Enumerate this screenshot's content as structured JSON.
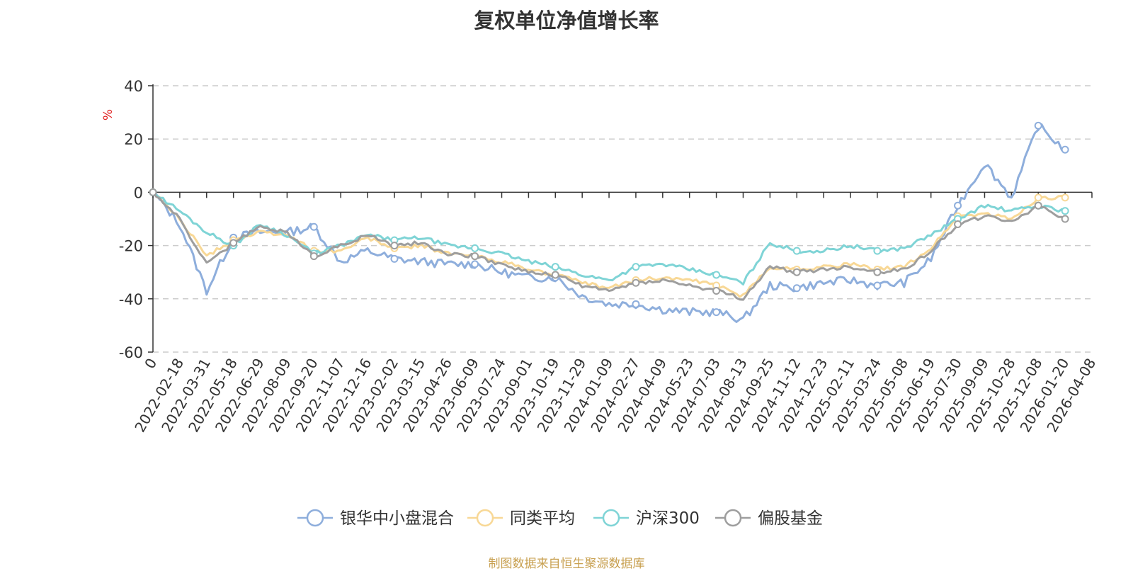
{
  "chart_data": {
    "type": "line",
    "title": "复权单位净值增长率",
    "ylabel": "%",
    "xlabel": "",
    "ylim": [
      -60,
      40
    ],
    "yticks": [
      "40",
      "20",
      "0",
      "-20",
      "-40",
      "-60"
    ],
    "x_origin_label": "0",
    "categories": [
      "2022-02-18",
      "2022-03-31",
      "2022-05-18",
      "2022-06-29",
      "2022-08-09",
      "2022-09-20",
      "2022-11-07",
      "2022-12-16",
      "2023-02-02",
      "2023-03-15",
      "2023-04-26",
      "2023-06-09",
      "2023-07-24",
      "2023-09-01",
      "2023-10-19",
      "2023-11-29",
      "2024-01-09",
      "2024-02-27",
      "2024-04-09",
      "2024-05-23",
      "2024-07-03",
      "2024-08-13",
      "2024-09-25",
      "2024-11-12",
      "2024-12-23",
      "2025-02-11",
      "2025-03-24",
      "2025-05-08",
      "2025-06-19",
      "2025-07-30",
      "2025-09-09",
      "2025-10-28",
      "2025-12-08",
      "2026-01-20",
      "2026-04-08"
    ],
    "series": [
      {
        "name": "银华中小盘混合",
        "color": "#8eaedc",
        "values": [
          0,
          -12,
          -37,
          -17,
          -15,
          -15,
          -13,
          -26,
          -22,
          -25,
          -26,
          -27,
          -27,
          -30,
          -32,
          -32,
          -39,
          -42,
          -42,
          -44,
          -45,
          -45,
          -48,
          -35,
          -36,
          -34,
          -33,
          -35,
          -34,
          -25,
          -5,
          11,
          -2,
          25,
          16
        ]
      },
      {
        "name": "同类平均",
        "color": "#f8d896",
        "values": [
          0,
          -10,
          -24,
          -18,
          -15,
          -16,
          -22,
          -22,
          -17,
          -21,
          -20,
          -23,
          -24,
          -26,
          -29,
          -31,
          -34,
          -36,
          -33,
          -32,
          -33,
          -35,
          -39,
          -28,
          -29,
          -28,
          -27,
          -29,
          -28,
          -21,
          -9,
          -8,
          -10,
          -2,
          -2
        ]
      },
      {
        "name": "沪深300",
        "color": "#7fd4d6",
        "values": [
          0,
          -7,
          -15,
          -20,
          -12,
          -16,
          -23,
          -20,
          -16,
          -18,
          -17,
          -20,
          -21,
          -23,
          -26,
          -28,
          -31,
          -33,
          -28,
          -27,
          -29,
          -31,
          -34,
          -19,
          -22,
          -22,
          -20,
          -22,
          -21,
          -16,
          -10,
          -5,
          -7,
          -5,
          -7
        ]
      },
      {
        "name": "偏股基金",
        "color": "#9e9e9e",
        "values": [
          0,
          -10,
          -27,
          -19,
          -13,
          -15,
          -24,
          -20,
          -16,
          -20,
          -19,
          -23,
          -24,
          -27,
          -30,
          -31,
          -35,
          -37,
          -34,
          -33,
          -35,
          -37,
          -40,
          -28,
          -30,
          -29,
          -28,
          -30,
          -29,
          -22,
          -12,
          -9,
          -11,
          -5,
          -10
        ]
      }
    ]
  },
  "source_note": "制图数据来自恒生聚源数据库"
}
